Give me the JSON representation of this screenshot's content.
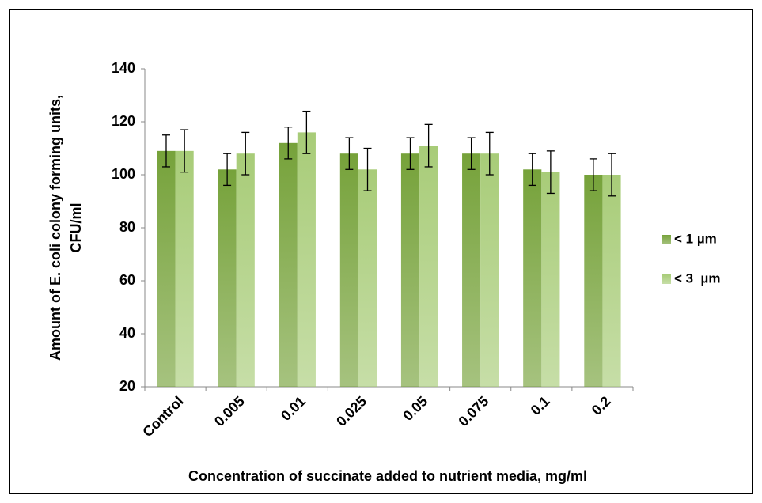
{
  "chart_data": {
    "type": "bar",
    "categories": [
      "Control",
      "0.005",
      "0.01",
      "0.025",
      "0.05",
      "0.075",
      "0.1",
      "0.2"
    ],
    "series": [
      {
        "name": "< 1 µm",
        "color": "#76a23a",
        "values": [
          109,
          102,
          112,
          108,
          108,
          108,
          102,
          100
        ],
        "errors": [
          6,
          6,
          6,
          6,
          6,
          6,
          6,
          6
        ]
      },
      {
        "name": "< 3  µm",
        "color": "#a8cc78",
        "values": [
          109,
          108,
          116,
          102,
          111,
          108,
          101,
          100
        ],
        "errors": [
          8,
          8,
          8,
          8,
          8,
          8,
          8,
          8
        ]
      }
    ],
    "ylim": [
      20,
      140
    ],
    "yticks": [
      20,
      40,
      60,
      80,
      100,
      120,
      140
    ],
    "xlabel": "Concentration of succinate added to nutrient media, mg/ml",
    "ylabel": [
      "Amount of E. coli colony forming units,",
      "CFU/ml"
    ],
    "legend": "right"
  }
}
